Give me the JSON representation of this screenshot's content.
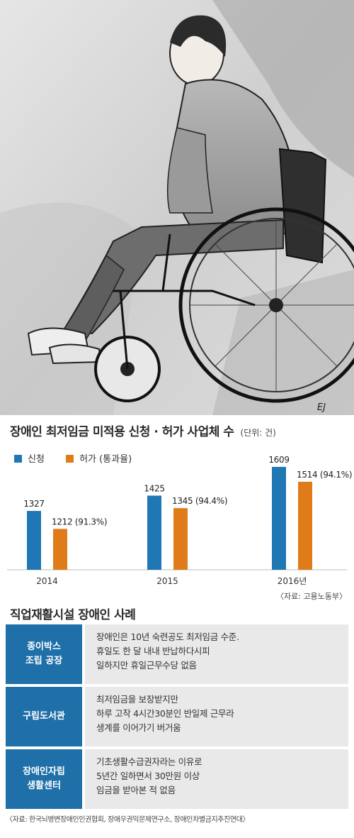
{
  "chart_data": {
    "type": "bar",
    "title": "장애인 최저임금 미적용 신청 · 허가 사업체 수",
    "unit": "(단위: 건)",
    "categories": [
      "2014",
      "2015",
      "2016년"
    ],
    "series": [
      {
        "name": "신청",
        "values": [
          1327,
          1425,
          1609
        ],
        "color": "#1f77b4"
      },
      {
        "name": "허가 (통과율)",
        "values": [
          1212,
          1345,
          1514
        ],
        "color": "#e07b1a",
        "rates": [
          "(91.3%)",
          "(94.4%)",
          "(94.1%)"
        ]
      }
    ],
    "source": "〈자료: 고용노동부〉"
  },
  "cases": {
    "title": "직업재활시설 장애인 사례",
    "items": [
      {
        "place": "종이박스\n조립 공장",
        "desc": "장애인은 10년 숙련공도 최저임금 수준.\n휴일도 한 달 내내 반납하다시피\n일하지만 휴일근무수당 없음"
      },
      {
        "place": "구립도서관",
        "desc": "최저임금을 보장받지만\n하루 고작 4시간30분인 반일제 근무라\n생계를 이어가기 버거움"
      },
      {
        "place": "장애인자립\n생활센터",
        "desc": "기초생활수급권자라는 이유로\n5년간 일하면서 30만원 이상\n임금을 받아본 적 없음"
      }
    ],
    "source": "〈자료: 한국뇌병변장애인인권협회, 장애우권익문제연구소, 장애인차별금지추진연대〉"
  },
  "illustration": {
    "signature": "EJ"
  }
}
